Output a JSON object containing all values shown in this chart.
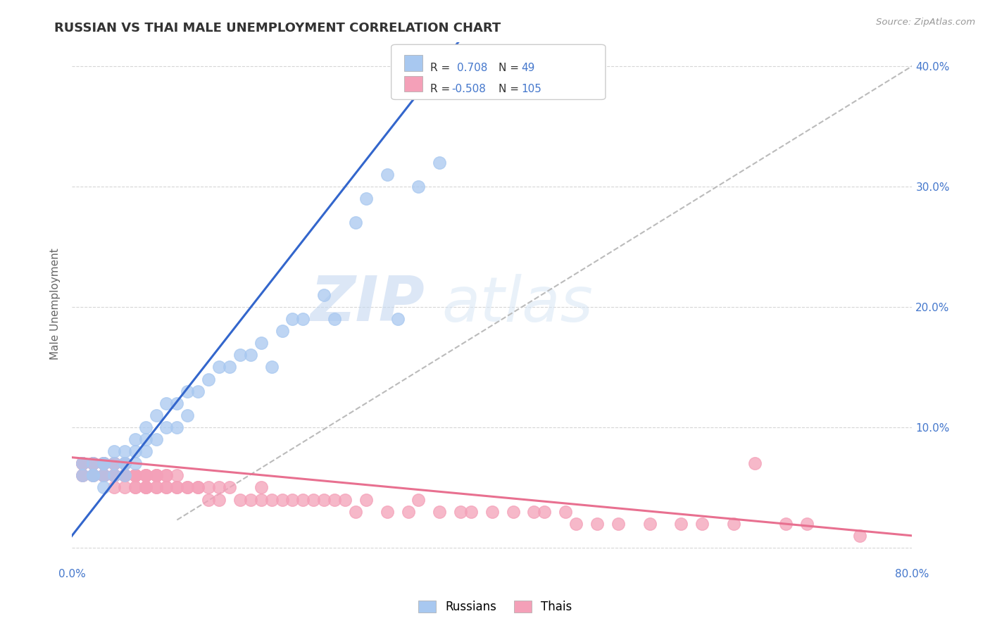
{
  "title": "RUSSIAN VS THAI MALE UNEMPLOYMENT CORRELATION CHART",
  "source_text": "Source: ZipAtlas.com",
  "ylabel": "Male Unemployment",
  "xlim": [
    0.0,
    0.8
  ],
  "ylim": [
    -0.015,
    0.42
  ],
  "russian_R": 0.708,
  "russian_N": 49,
  "thai_R": -0.508,
  "thai_N": 105,
  "russian_color": "#a8c8f0",
  "thai_color": "#f4a0b8",
  "russian_line_color": "#3366cc",
  "thai_line_color": "#e87090",
  "trend_line_color": "#bbbbbb",
  "background_color": "#ffffff",
  "grid_color": "#cccccc",
  "legend_labels": [
    "Russians",
    "Thais"
  ],
  "watermark_zip": "ZIP",
  "watermark_atlas": "atlas"
}
